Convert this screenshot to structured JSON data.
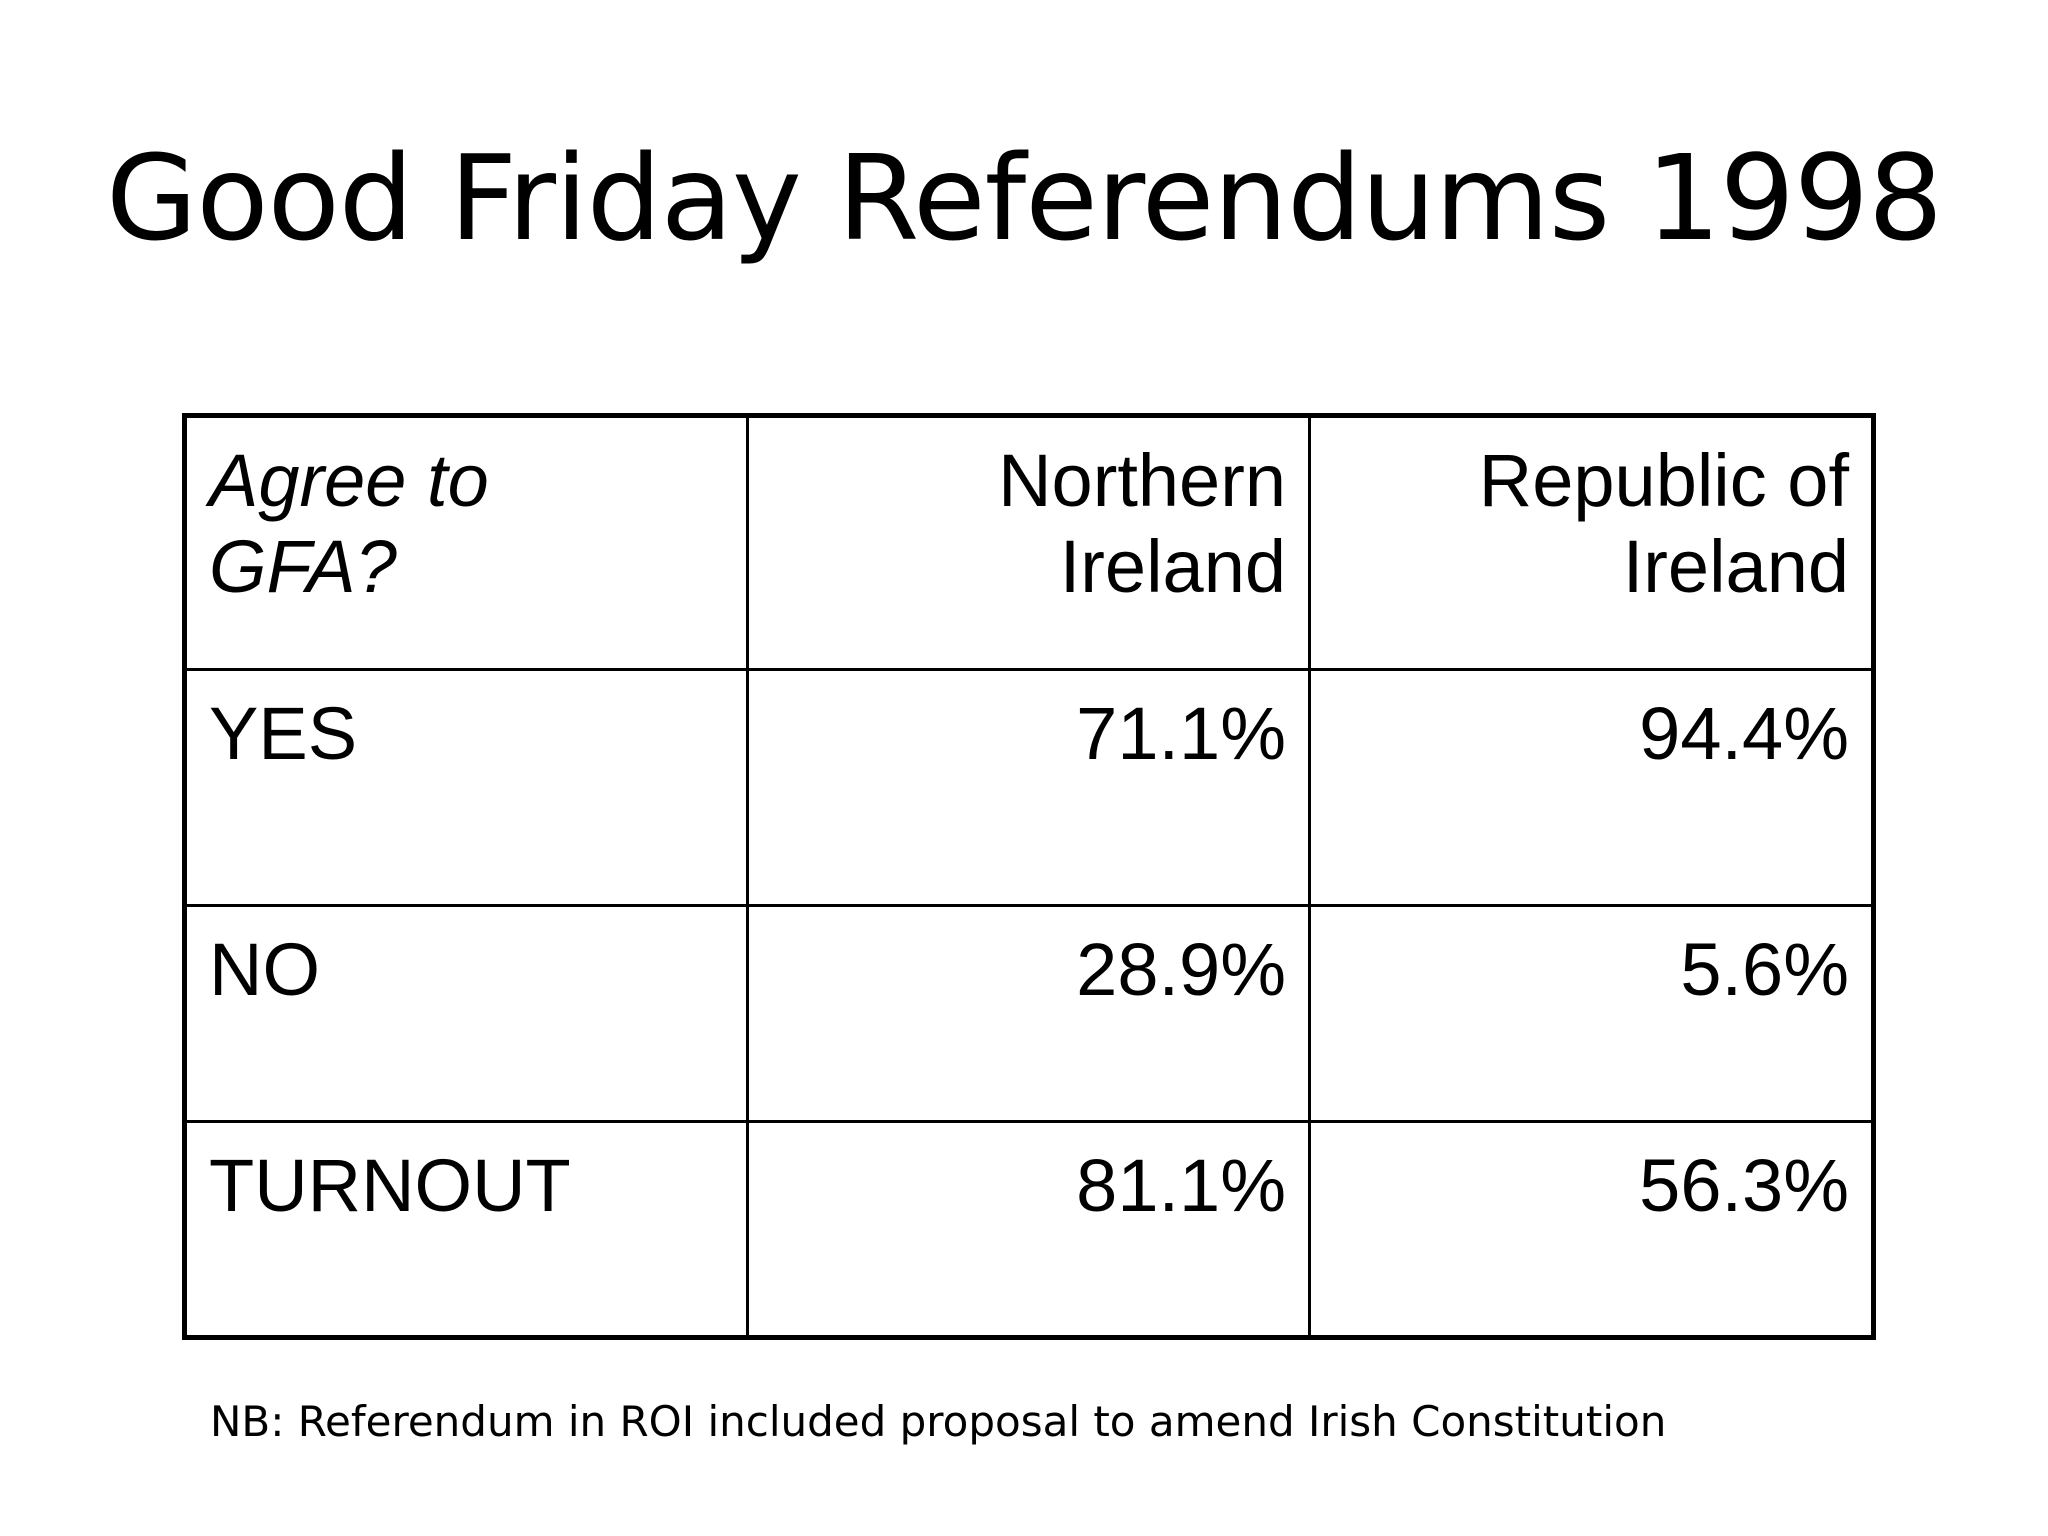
{
  "slide": {
    "title": "Good Friday Referendums 1998",
    "footnote": "NB: Referendum in ROI included proposal to amend Irish Constitution"
  },
  "table": {
    "headers": {
      "question": [
        "Agree to",
        "GFA?"
      ],
      "northern_ireland": [
        "Northern",
        "Ireland"
      ],
      "republic_of_ireland": [
        "Republic of",
        "Ireland"
      ]
    },
    "rows": [
      {
        "label": "YES",
        "northern_ireland": "71.1%",
        "republic_of_ireland": "94.4%"
      },
      {
        "label": "NO",
        "northern_ireland": "28.9%",
        "republic_of_ireland": "5.6%"
      },
      {
        "label": "TURNOUT",
        "northern_ireland": "81.1%",
        "republic_of_ireland": "56.3%"
      }
    ]
  }
}
